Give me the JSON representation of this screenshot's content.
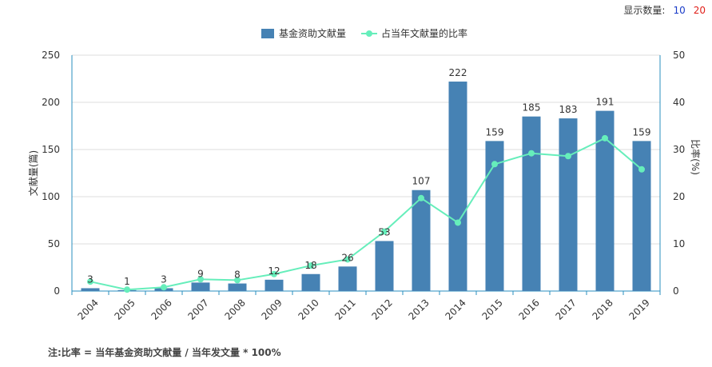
{
  "display_count": {
    "label": "显示数量:",
    "options": [
      "10",
      "20"
    ]
  },
  "footnote": "注:比率 = 当年基金资助文献量 / 当年发文量 * 100%",
  "chart_data": {
    "type": "bar",
    "categories": [
      "2004",
      "2005",
      "2006",
      "2007",
      "2008",
      "2009",
      "2010",
      "2011",
      "2012",
      "2013",
      "2014",
      "2015",
      "2016",
      "2017",
      "2018",
      "2019"
    ],
    "series": [
      {
        "name": "基金资助文献量",
        "type": "bar",
        "axis": "left",
        "color": "#4682b4",
        "values": [
          3,
          1,
          3,
          9,
          8,
          12,
          18,
          26,
          53,
          107,
          222,
          159,
          185,
          183,
          191,
          159
        ],
        "data_labels": [
          "3",
          "1",
          "3",
          "9",
          "8",
          "12",
          "18",
          "26",
          "53",
          "107",
          "222",
          "159",
          "185",
          "183",
          "191",
          "159"
        ]
      },
      {
        "name": "占当年文献量的比率",
        "type": "line",
        "axis": "right",
        "color": "#66eebb",
        "values": [
          2.0,
          0.3,
          0.8,
          2.5,
          2.3,
          3.6,
          5.4,
          6.7,
          12.6,
          19.7,
          14.5,
          26.9,
          29.2,
          28.6,
          32.4,
          25.8
        ]
      }
    ],
    "y_left": {
      "label": "文献量(篇)",
      "range": [
        0,
        250
      ],
      "ticks": [
        "0",
        "50",
        "100",
        "150",
        "200",
        "250"
      ]
    },
    "y_right": {
      "label": "比率(%)",
      "range": [
        0,
        50
      ],
      "ticks": [
        "0",
        "10",
        "20",
        "30",
        "40",
        "50"
      ]
    },
    "grid": true,
    "legend_position": "top-center"
  }
}
